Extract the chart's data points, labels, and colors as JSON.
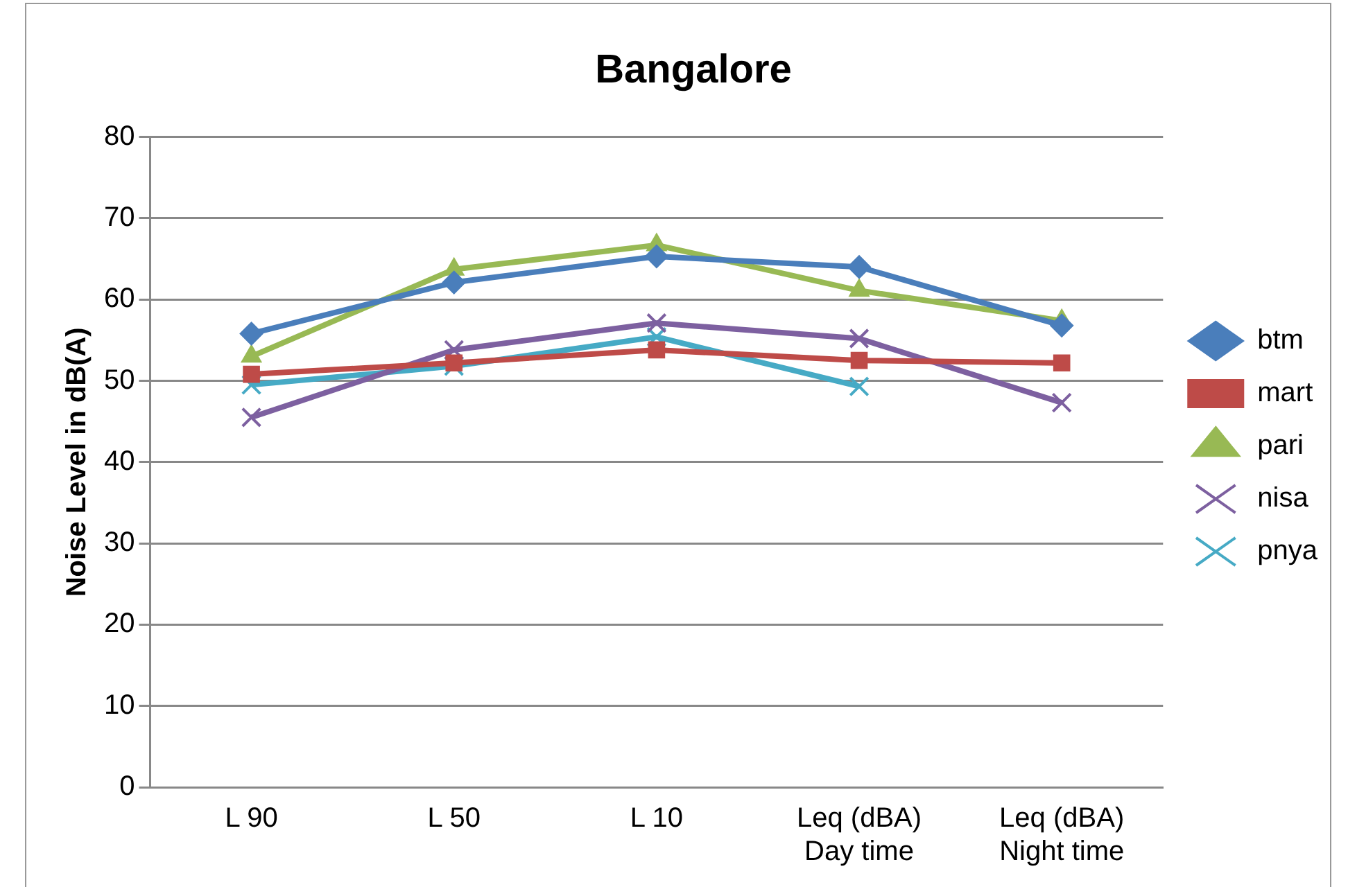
{
  "chart_data": {
    "type": "line",
    "title": "Bangalore",
    "ylabel": "Noise Level in dB(A)",
    "categories": [
      "L 90",
      "L 50",
      "L 10",
      "Leq (dBA)Day time",
      "Leq (dBA)Night time"
    ],
    "series": [
      {
        "name": "btm",
        "color": "#4a7ebb",
        "marker": "diamond",
        "values": [
          55.8,
          62.1,
          65.3,
          64,
          56.8
        ]
      },
      {
        "name": "mart",
        "color": "#be4b48",
        "marker": "square",
        "values": [
          50.8,
          52.2,
          53.8,
          52.5,
          52.2
        ]
      },
      {
        "name": "pari",
        "color": "#98b954",
        "marker": "triangle",
        "values": [
          53,
          63.7,
          66.7,
          61.1,
          57.4
        ]
      },
      {
        "name": "nisa",
        "color": "#7d60a0",
        "marker": "cross",
        "values": [
          45.5,
          53.8,
          57.1,
          55.2,
          47.3
        ]
      },
      {
        "name": "pnya",
        "color": "#46aac5",
        "marker": "cross",
        "values": [
          49.5,
          51.8,
          55.4,
          49.3,
          null
        ]
      }
    ],
    "ylim": [
      0,
      80
    ],
    "yticks": [
      0,
      10,
      20,
      30,
      40,
      50,
      60,
      70,
      80
    ],
    "grid": "y",
    "legend": "right",
    "line_style": "solid"
  }
}
